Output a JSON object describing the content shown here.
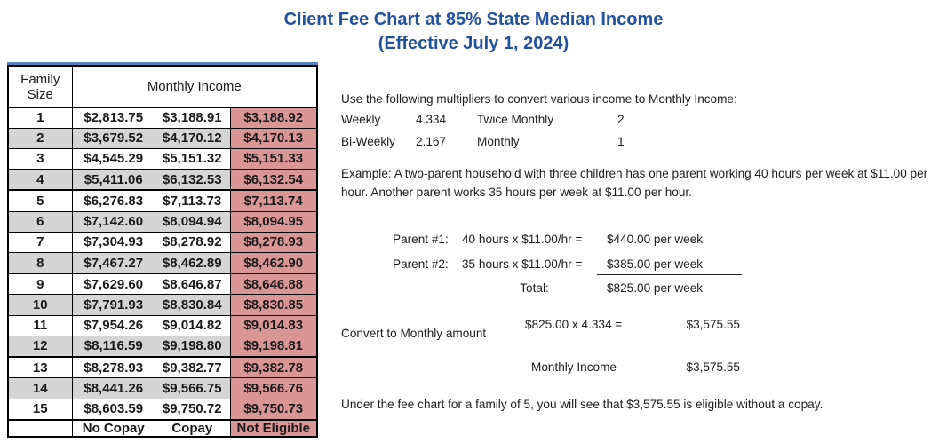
{
  "title": {
    "line1": "Client Fee Chart at 85% State Median Income",
    "line2": "(Effective July 1, 2024)"
  },
  "colors": {
    "title_blue": "#2152a0",
    "table_top_border_blue": "#5585c2",
    "stripe_gray": "#d5d5d5",
    "not_eligible_pink": "#da9694"
  },
  "table": {
    "header_family": "Family Size",
    "header_income": "Monthly Income",
    "rows": [
      {
        "size": "1",
        "no_copay": "$2,813.75",
        "copay": "$3,188.91",
        "not_eligible": "$3,188.92"
      },
      {
        "size": "2",
        "no_copay": "$3,679.52",
        "copay": "$4,170.12",
        "not_eligible": "$4,170.13"
      },
      {
        "size": "3",
        "no_copay": "$4,545.29",
        "copay": "$5,151.32",
        "not_eligible": "$5,151.33"
      },
      {
        "size": "4",
        "no_copay": "$5,411.06",
        "copay": "$6,132.53",
        "not_eligible": "$6,132.54"
      },
      {
        "size": "5",
        "no_copay": "$6,276.83",
        "copay": "$7,113.73",
        "not_eligible": "$7,113.74"
      },
      {
        "size": "6",
        "no_copay": "$7,142.60",
        "copay": "$8,094.94",
        "not_eligible": "$8,094.95"
      },
      {
        "size": "7",
        "no_copay": "$7,304.93",
        "copay": "$8,278.92",
        "not_eligible": "$8,278.93"
      },
      {
        "size": "8",
        "no_copay": "$7,467.27",
        "copay": "$8,462.89",
        "not_eligible": "$8,462.90"
      },
      {
        "size": "9",
        "no_copay": "$7,629.60",
        "copay": "$8,646.87",
        "not_eligible": "$8,646.88"
      },
      {
        "size": "10",
        "no_copay": "$7,791.93",
        "copay": "$8,830.84",
        "not_eligible": "$8,830.85"
      },
      {
        "size": "11",
        "no_copay": "$7,954.26",
        "copay": "$9,014.82",
        "not_eligible": "$9,014.83"
      },
      {
        "size": "12",
        "no_copay": "$8,116.59",
        "copay": "$9,198.80",
        "not_eligible": "$9,198.81"
      },
      {
        "size": "13",
        "no_copay": "$8,278.93",
        "copay": "$9,382.77",
        "not_eligible": "$9,382.78"
      },
      {
        "size": "14",
        "no_copay": "$8,441.26",
        "copay": "$9,566.75",
        "not_eligible": "$9,566.76"
      },
      {
        "size": "15",
        "no_copay": "$8,603.59",
        "copay": "$9,750.72",
        "not_eligible": "$9,750.73"
      }
    ],
    "footer": {
      "no_copay": "No Copay",
      "copay": "Copay",
      "not_eligible": "Not Eligible"
    }
  },
  "multipliers": {
    "intro": "Use the following multipliers to convert various income to Monthly Income:",
    "rows": [
      {
        "label": "Weekly",
        "value": "4.334",
        "label2": "Twice Monthly",
        "value2": "2"
      },
      {
        "label": "Bi-Weekly",
        "value": "2.167",
        "label2": "Monthly",
        "value2": "1"
      }
    ]
  },
  "example": {
    "text": "Example: A two-parent household with three children has one parent working 40 hours per week at $11.00 per hour.  Another parent works 35 hours per week at $11.00 per hour.",
    "calc": [
      {
        "label": "Parent #1:",
        "formula": "40 hours x $11.00/hr =",
        "result": "$440.00 per week"
      },
      {
        "label": "Parent #2:",
        "formula": "35 hours x $11.00/hr =",
        "result": "$385.00 per week"
      },
      {
        "label": "",
        "formula": "Total:",
        "result": "$825.00 per week"
      }
    ],
    "convert_label": "Convert to Monthly amount",
    "convert_formula": "$825.00 x 4.334 =",
    "convert_result": "$3,575.55",
    "monthly_income_label": "Monthly Income",
    "monthly_income_value": "$3,575.55",
    "conclusion": "Under the fee chart for a family of 5, you will see that $3,575.55 is eligible without a copay."
  }
}
